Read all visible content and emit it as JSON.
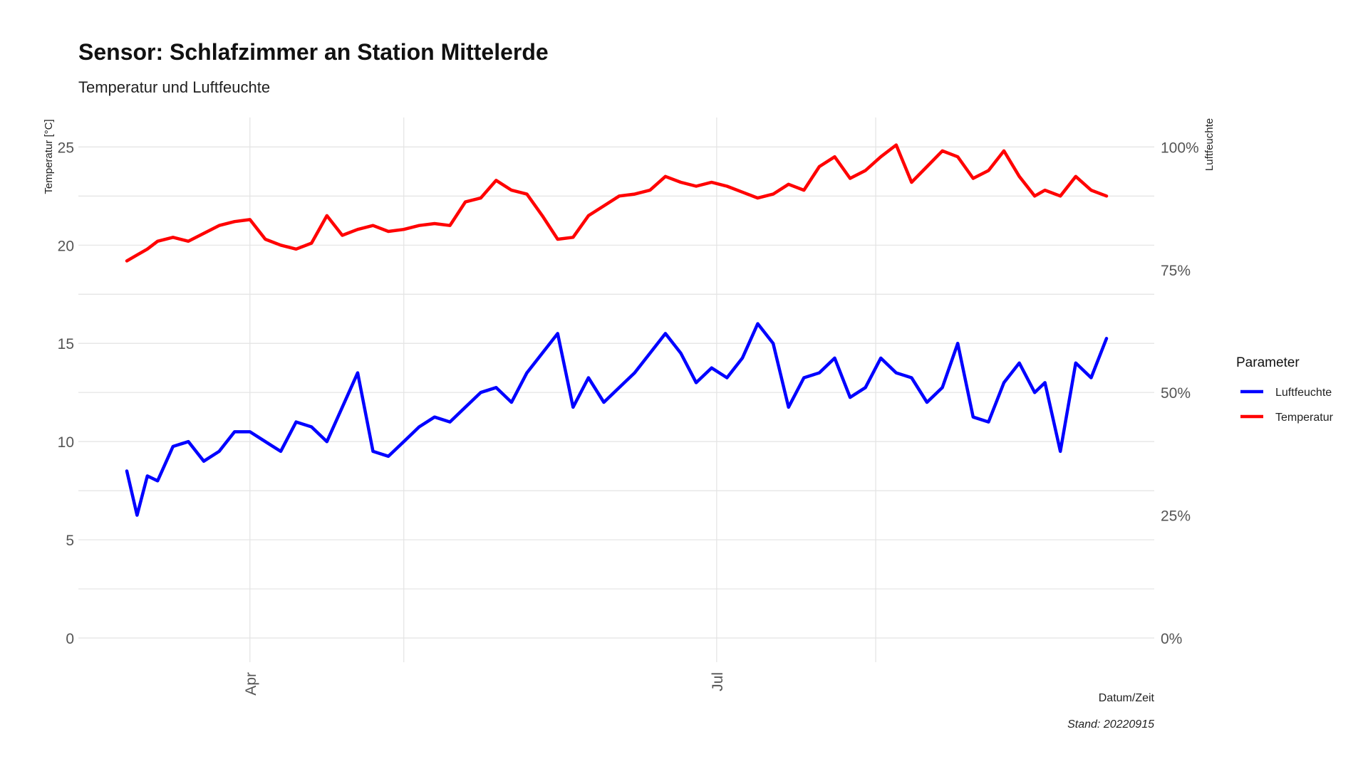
{
  "chart_data": {
    "type": "line",
    "title": "Sensor: Schlafzimmer an Station Mittelerde",
    "subtitle": "Temperatur und Luftfeuchte",
    "xlabel": "Datum/Zeit",
    "ylabel": "Temperatur [°C]",
    "y2label": "Luftfeuchte",
    "caption": "Stand: 20220915",
    "x_tick_labels": [
      "Apr",
      "Jul"
    ],
    "y_ticks": [
      "0",
      "5",
      "10",
      "15",
      "20",
      "25"
    ],
    "y2_ticks": [
      "0%",
      "25%",
      "50%",
      "75%",
      "100%"
    ],
    "ylim": [
      0,
      26.5
    ],
    "y2lim": [
      0,
      1.06
    ],
    "x_range": [
      "2022-03-08",
      "2022-09-15"
    ],
    "grid": true,
    "legend": {
      "title": "Parameter",
      "position": "right"
    },
    "series": [
      {
        "name": "Luftfeuchte",
        "color": "#0000ff",
        "axis": "right",
        "x": [
          "2022-03-08",
          "2022-03-10",
          "2022-03-12",
          "2022-03-14",
          "2022-03-17",
          "2022-03-20",
          "2022-03-23",
          "2022-03-26",
          "2022-03-29",
          "2022-04-01",
          "2022-04-04",
          "2022-04-07",
          "2022-04-10",
          "2022-04-13",
          "2022-04-16",
          "2022-04-19",
          "2022-04-22",
          "2022-04-25",
          "2022-04-28",
          "2022-05-01",
          "2022-05-04",
          "2022-05-07",
          "2022-05-10",
          "2022-05-13",
          "2022-05-16",
          "2022-05-19",
          "2022-05-22",
          "2022-05-25",
          "2022-05-28",
          "2022-05-31",
          "2022-06-03",
          "2022-06-06",
          "2022-06-09",
          "2022-06-12",
          "2022-06-15",
          "2022-06-18",
          "2022-06-21",
          "2022-06-24",
          "2022-06-27",
          "2022-06-30",
          "2022-07-03",
          "2022-07-06",
          "2022-07-09",
          "2022-07-12",
          "2022-07-15",
          "2022-07-18",
          "2022-07-21",
          "2022-07-24",
          "2022-07-27",
          "2022-07-30",
          "2022-08-02",
          "2022-08-05",
          "2022-08-08",
          "2022-08-11",
          "2022-08-14",
          "2022-08-17",
          "2022-08-20",
          "2022-08-23",
          "2022-08-26",
          "2022-08-29",
          "2022-09-01",
          "2022-09-03",
          "2022-09-06",
          "2022-09-09",
          "2022-09-12",
          "2022-09-15"
        ],
        "values": [
          0.34,
          0.25,
          0.33,
          0.32,
          0.39,
          0.4,
          0.36,
          0.38,
          0.42,
          0.42,
          0.4,
          0.38,
          0.44,
          0.43,
          0.4,
          0.47,
          0.54,
          0.38,
          0.37,
          0.4,
          0.43,
          0.45,
          0.44,
          0.47,
          0.5,
          0.51,
          0.48,
          0.54,
          0.58,
          0.62,
          0.47,
          0.53,
          0.48,
          0.51,
          0.54,
          0.58,
          0.62,
          0.58,
          0.52,
          0.55,
          0.53,
          0.57,
          0.64,
          0.6,
          0.47,
          0.53,
          0.54,
          0.57,
          0.49,
          0.51,
          0.57,
          0.54,
          0.53,
          0.48,
          0.51,
          0.6,
          0.45,
          0.44,
          0.52,
          0.56,
          0.5,
          0.52,
          0.38,
          0.56,
          0.53,
          0.61
        ]
      },
      {
        "name": "Temperatur",
        "color": "#ff0000",
        "axis": "left",
        "x": [
          "2022-03-08",
          "2022-03-10",
          "2022-03-12",
          "2022-03-14",
          "2022-03-17",
          "2022-03-20",
          "2022-03-23",
          "2022-03-26",
          "2022-03-29",
          "2022-04-01",
          "2022-04-04",
          "2022-04-07",
          "2022-04-10",
          "2022-04-13",
          "2022-04-16",
          "2022-04-19",
          "2022-04-22",
          "2022-04-25",
          "2022-04-28",
          "2022-05-01",
          "2022-05-04",
          "2022-05-07",
          "2022-05-10",
          "2022-05-13",
          "2022-05-16",
          "2022-05-19",
          "2022-05-22",
          "2022-05-25",
          "2022-05-28",
          "2022-05-31",
          "2022-06-03",
          "2022-06-06",
          "2022-06-09",
          "2022-06-12",
          "2022-06-15",
          "2022-06-18",
          "2022-06-21",
          "2022-06-24",
          "2022-06-27",
          "2022-06-30",
          "2022-07-03",
          "2022-07-06",
          "2022-07-09",
          "2022-07-12",
          "2022-07-15",
          "2022-07-18",
          "2022-07-21",
          "2022-07-24",
          "2022-07-27",
          "2022-07-30",
          "2022-08-02",
          "2022-08-05",
          "2022-08-08",
          "2022-08-11",
          "2022-08-14",
          "2022-08-17",
          "2022-08-20",
          "2022-08-23",
          "2022-08-26",
          "2022-08-29",
          "2022-09-01",
          "2022-09-03",
          "2022-09-06",
          "2022-09-09",
          "2022-09-12",
          "2022-09-15"
        ],
        "values": [
          19.2,
          19.5,
          19.8,
          20.2,
          20.4,
          20.2,
          20.6,
          21.0,
          21.2,
          21.3,
          20.3,
          20.0,
          19.8,
          20.1,
          21.5,
          20.5,
          20.8,
          21.0,
          20.7,
          20.8,
          21.0,
          21.1,
          21.0,
          22.2,
          22.4,
          23.3,
          22.8,
          22.6,
          21.5,
          20.3,
          20.4,
          21.5,
          22.0,
          22.5,
          22.6,
          22.8,
          23.5,
          23.2,
          23.0,
          23.2,
          23.0,
          22.7,
          22.4,
          22.6,
          23.1,
          22.8,
          24.0,
          24.5,
          23.4,
          23.8,
          24.5,
          25.1,
          23.2,
          24.0,
          24.8,
          24.5,
          23.4,
          23.8,
          24.8,
          23.5,
          22.5,
          22.8,
          22.5,
          23.5,
          22.8,
          22.5
        ]
      }
    ]
  }
}
